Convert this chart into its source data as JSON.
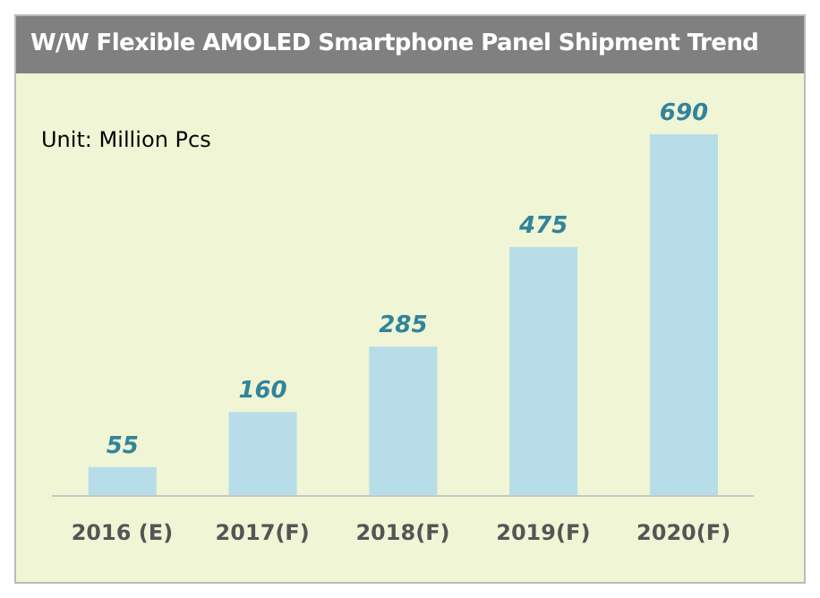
{
  "chart_data": {
    "type": "bar",
    "title": "W/W Flexible AMOLED Smartphone Panel Shipment Trend",
    "annotations": [
      "Unit: Million Pcs"
    ],
    "categories": [
      "2016 (E)",
      "2017(F)",
      "2018(F)",
      "2019(F)",
      "2020(F)"
    ],
    "values": [
      55,
      160,
      285,
      475,
      690
    ],
    "color": "#b7dde8",
    "data_labels": true
  }
}
